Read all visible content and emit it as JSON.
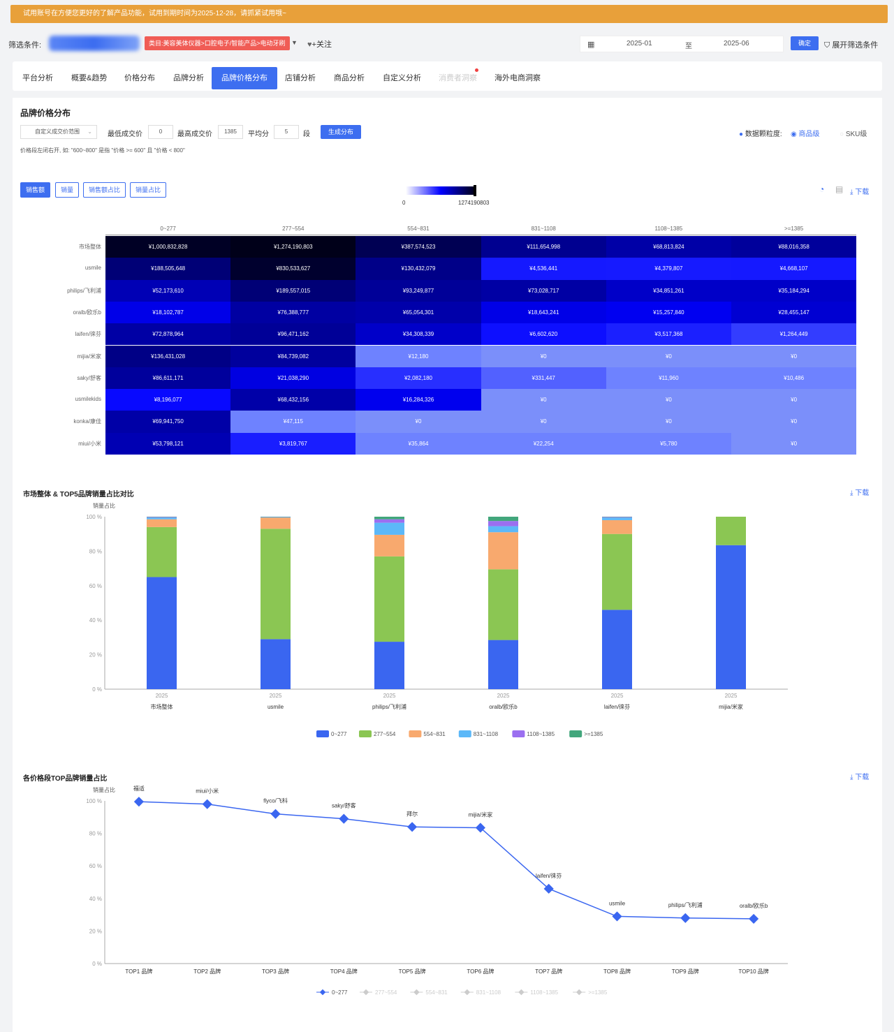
{
  "banner": {
    "text": "试用账号在方便您更好的了解产品功能，试用到期时间为2025-12-28，请抓紧试用哦~"
  },
  "filter": {
    "label": "筛选条件:",
    "category_tag": "类目:美容美体仪器>口腔电子/智能产品>电动牙刷",
    "follow": "+关注",
    "date_from": "2025-01",
    "date_to_label": "至",
    "date_to": "2025-06",
    "confirm": "确定",
    "expand": "展开筛选条件"
  },
  "tabs": [
    {
      "label": "平台分析"
    },
    {
      "label": "概要&趋势"
    },
    {
      "label": "价格分布"
    },
    {
      "label": "品牌分析"
    },
    {
      "label": "品牌价格分布"
    },
    {
      "label": "店铺分析"
    },
    {
      "label": "商品分析"
    },
    {
      "label": "自定义分析"
    },
    {
      "label": "消费者洞察"
    },
    {
      "label": "海外电商洞察"
    }
  ],
  "section1": {
    "title": "品牌价格分布",
    "custom_range_select": "自定义成交价范围",
    "min_label": "最低成交价",
    "min_value": "0",
    "max_label": "最高成交价",
    "max_value": "1385",
    "split_label": "平均分",
    "split_value": "5",
    "split_unit": "段",
    "generate": "生成分布",
    "note": "价格段左闭右开, 如: \"600~800\" 是指 \"价格 >= 600\" 且 \"价格 < 800\"",
    "granularity_label": "数据颗粒度:",
    "gran_option_1": "商品级",
    "gran_option_2": "SKU级",
    "metric_buttons": [
      "销售额",
      "销量",
      "销售额占比",
      "销量占比"
    ],
    "legend_min": "0",
    "legend_max": "1274190803",
    "download": "下载"
  },
  "heatmap": {
    "columns": [
      "0~277",
      "277~554",
      "554~831",
      "831~1108",
      "1108~1385",
      ">=1385"
    ],
    "rows": [
      {
        "label": "市场整体",
        "values": [
          "¥1,000,832,828",
          "¥1,274,190,803",
          "¥387,574,523",
          "¥111,654,998",
          "¥68,813,824",
          "¥88,016,358"
        ],
        "raw": [
          1000832828,
          1274190803,
          387574523,
          111654998,
          68813824,
          88016358
        ]
      },
      {
        "label": "usmile",
        "values": [
          "¥188,505,648",
          "¥830,533,627",
          "¥130,432,079",
          "¥4,536,441",
          "¥4,379,807",
          "¥4,668,107"
        ],
        "raw": [
          188505648,
          830533627,
          130432079,
          4536441,
          4379807,
          4668107
        ]
      },
      {
        "label": "philips/飞利浦",
        "values": [
          "¥52,173,610",
          "¥189,557,015",
          "¥93,249,877",
          "¥73,028,717",
          "¥34,851,261",
          "¥35,184,294"
        ],
        "raw": [
          52173610,
          189557015,
          93249877,
          73028717,
          34851261,
          35184294
        ]
      },
      {
        "label": "oralb/欧乐b",
        "values": [
          "¥18,102,787",
          "¥76,388,777",
          "¥65,054,301",
          "¥18,643,241",
          "¥15,257,840",
          "¥28,455,147"
        ],
        "raw": [
          18102787,
          76388777,
          65054301,
          18643241,
          15257840,
          28455147
        ]
      },
      {
        "label": "laifen/徕芬",
        "values": [
          "¥72,878,964",
          "¥96,471,162",
          "¥34,308,339",
          "¥6,602,620",
          "¥3,517,368",
          "¥1,264,449"
        ],
        "raw": [
          72878964,
          96471162,
          34308339,
          6602620,
          3517368,
          1264449
        ]
      },
      {
        "label": "mijia/米家",
        "values": [
          "¥136,431,028",
          "¥84,739,082",
          "¥12,180",
          "¥0",
          "¥0",
          "¥0"
        ],
        "raw": [
          136431028,
          84739082,
          12180,
          0,
          0,
          0
        ]
      },
      {
        "label": "saky/舒客",
        "values": [
          "¥86,611,171",
          "¥21,038,290",
          "¥2,082,180",
          "¥331,447",
          "¥11,960",
          "¥10,486"
        ],
        "raw": [
          86611171,
          21038290,
          2082180,
          331447,
          11960,
          10486
        ]
      },
      {
        "label": "usmilekids",
        "values": [
          "¥8,196,077",
          "¥68,432,156",
          "¥16,284,326",
          "¥0",
          "¥0",
          "¥0"
        ],
        "raw": [
          8196077,
          68432156,
          16284326,
          0,
          0,
          0
        ]
      },
      {
        "label": "konka/康佳",
        "values": [
          "¥69,941,750",
          "¥47,115",
          "¥0",
          "¥0",
          "¥0",
          "¥0"
        ],
        "raw": [
          69941750,
          47115,
          0,
          0,
          0,
          0
        ]
      },
      {
        "label": "miui/小米",
        "values": [
          "¥53,798,121",
          "¥3,819,767",
          "¥35,864",
          "¥22,254",
          "¥5,780",
          "¥0"
        ],
        "raw": [
          53798121,
          3819767,
          35864,
          22254,
          5780,
          0
        ]
      }
    ]
  },
  "section2": {
    "title": "市场整体 & TOP5品牌销量占比对比",
    "download": "下载"
  },
  "section3": {
    "title": "各价格段TOP品牌销量占比",
    "download": "下载"
  },
  "chart_data": [
    {
      "type": "bar",
      "stacked": true,
      "ylabel": "销量占比",
      "ylim": [
        0,
        100
      ],
      "yticks": [
        "0 %",
        "20 %",
        "40 %",
        "60 %",
        "80 %",
        "100 %"
      ],
      "categories": [
        "市场整体",
        "usmile",
        "philips/飞利浦",
        "oralb/欧乐b",
        "laifen/徕芬",
        "mijia/米家"
      ],
      "x_sublabel": "2025",
      "series": [
        {
          "name": "0~277",
          "color": "#3a66f0",
          "values": [
            65,
            29,
            27.5,
            28.5,
            46,
            83.5
          ]
        },
        {
          "name": "277~554",
          "color": "#8bc653",
          "values": [
            29,
            64,
            49.5,
            41,
            44,
            16.5
          ]
        },
        {
          "name": "554~831",
          "color": "#f8a96e",
          "values": [
            4.5,
            6.5,
            12.5,
            21.5,
            8,
            0
          ]
        },
        {
          "name": "831~1108",
          "color": "#5cb8f8",
          "values": [
            1,
            0.3,
            7,
            3.5,
            1.5,
            0
          ]
        },
        {
          "name": "1108~1385",
          "color": "#9b6ff0",
          "values": [
            0.3,
            0.1,
            2,
            3,
            0.3,
            0
          ]
        },
        {
          "name": ">=1385",
          "color": "#42a67c",
          "values": [
            0.2,
            0.1,
            1.5,
            2.5,
            0.2,
            0
          ]
        }
      ],
      "legend_position": "bottom"
    },
    {
      "type": "line",
      "ylabel": "销量占比",
      "ylim": [
        0,
        100
      ],
      "yticks": [
        "0 %",
        "20 %",
        "40 %",
        "60 %",
        "80 %",
        "100 %"
      ],
      "categories": [
        "TOP1 品牌",
        "TOP2 品牌",
        "TOP3 品牌",
        "TOP4 品牌",
        "TOP5 品牌",
        "TOP6 品牌",
        "TOP7 品牌",
        "TOP8 品牌",
        "TOP9 品牌",
        "TOP10 品牌"
      ],
      "point_labels": [
        "福适",
        "miui/小米",
        "flyco/飞科",
        "saky/舒客",
        "拜尔",
        "mijia/米家",
        "laifen/徕芬",
        "usmile",
        "philips/飞利浦",
        "oralb/欧乐b"
      ],
      "series": [
        {
          "name": "0~277",
          "color": "#3a66f0",
          "values": [
            99.5,
            98,
            92,
            89,
            84,
            83.5,
            46,
            29,
            28,
            27.5
          ]
        }
      ],
      "legend": [
        "0~277",
        "277~554",
        "554~831",
        "831~1108",
        "1108~1385",
        ">=1385"
      ],
      "legend_position": "bottom"
    }
  ]
}
